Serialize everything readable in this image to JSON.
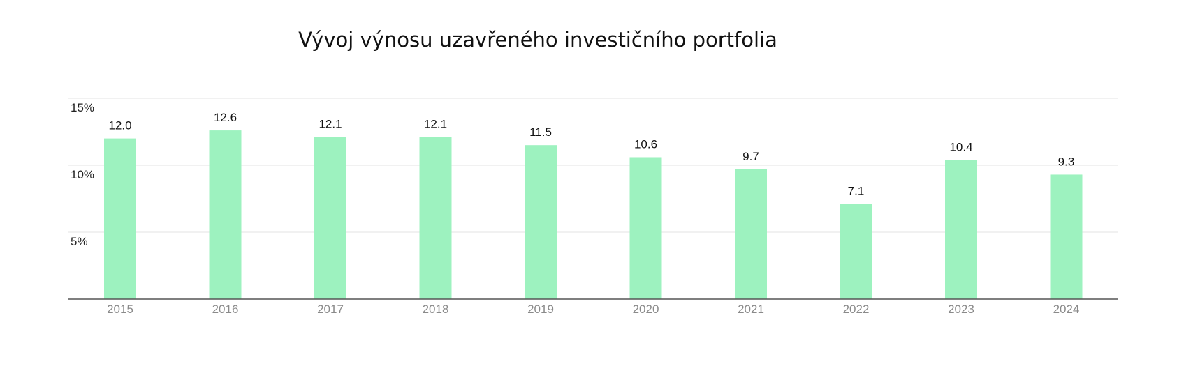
{
  "chart_data": {
    "type": "bar",
    "title": "Vývoj výnosu uzavřeného investičního portfolia",
    "xlabel": "",
    "ylabel": "",
    "categories": [
      "2015",
      "2016",
      "2017",
      "2018",
      "2019",
      "2020",
      "2021",
      "2022",
      "2023",
      "2024"
    ],
    "values": [
      12.0,
      12.6,
      12.1,
      12.1,
      11.5,
      10.6,
      9.7,
      7.1,
      10.4,
      9.3
    ],
    "value_labels": [
      "12.0",
      "12.6",
      "12.1",
      "12.1",
      "11.5",
      "10.6",
      "9.7",
      "7.1",
      "10.4",
      "9.3"
    ],
    "ylim": [
      0,
      15
    ],
    "y_ticks": [
      {
        "value": 5,
        "label": "5%"
      },
      {
        "value": 10,
        "label": "10%"
      },
      {
        "value": 15,
        "label": "15%"
      }
    ],
    "grid": true,
    "legend": "none",
    "colors": {
      "bar": "#9df2bf",
      "grid": "#e3e3e3",
      "axis": "#555555"
    }
  }
}
